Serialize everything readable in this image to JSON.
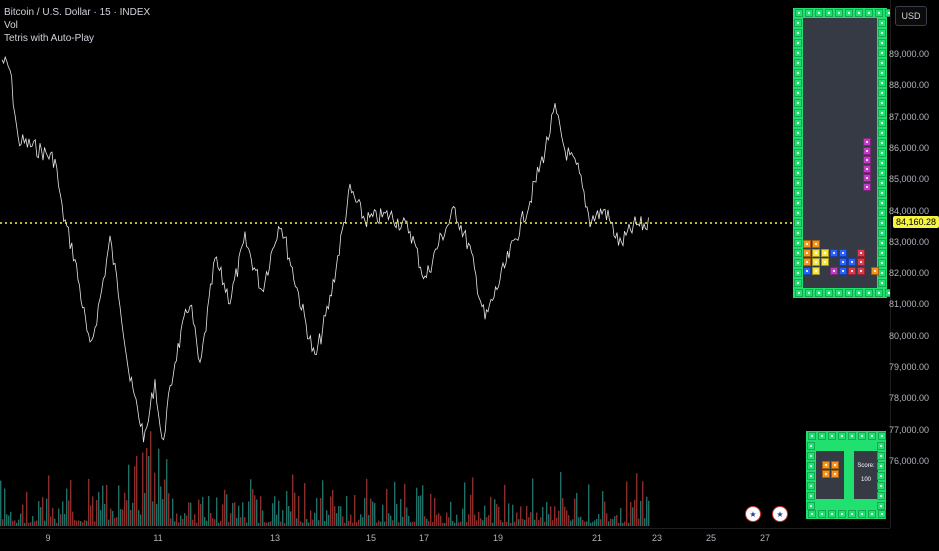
{
  "legend": {
    "symbol": "Bitcoin / U.S. Dollar · 15 · INDEX",
    "volume": "Vol",
    "indicator": "Tetris with Auto-Play"
  },
  "price_axis": {
    "currency": "USD",
    "ticks": [
      "89,000.00",
      "88,000.00",
      "87,000.00",
      "86,000.00",
      "85,000.00",
      "84,000.00",
      "83,000.00",
      "82,000.00",
      "81,000.00",
      "80,000.00",
      "79,000.00",
      "78,000.00",
      "77,000.00",
      "76,000.00"
    ],
    "last_price": "84,160.28",
    "last_price_color": "#f5f542"
  },
  "time_axis": {
    "ticks": [
      "9",
      "11",
      "13",
      "15",
      "17",
      "19",
      "21",
      "23",
      "25",
      "27"
    ]
  },
  "events": [
    "us-flag-icon",
    "us-flag-icon"
  ],
  "tetris": {
    "board_color": "#20e070",
    "score_label": "Score:",
    "score_value": "100",
    "next_piece": "O"
  },
  "colors": {
    "up": "#26a69a",
    "down": "#ef5350",
    "price_line": "#f5f542"
  }
}
